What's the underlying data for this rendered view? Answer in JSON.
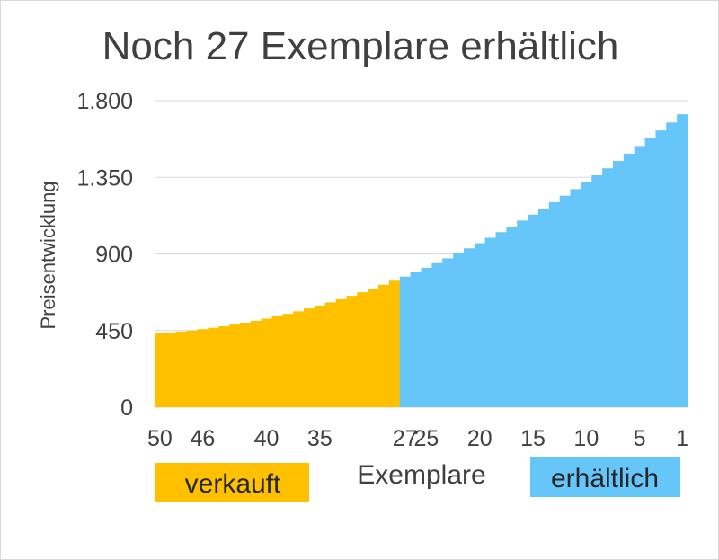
{
  "chart_data": {
    "type": "bar",
    "title": "Noch 27 Exemplare erhältlich",
    "xlabel": "Exemplare",
    "ylabel": "Preisentwicklung",
    "xlim": [
      50,
      1
    ],
    "ylim": [
      0,
      1800
    ],
    "x_ticks": [
      50,
      46,
      40,
      35,
      27,
      25,
      20,
      15,
      10,
      5,
      1
    ],
    "y_tick_values": [
      0,
      450,
      900,
      1350,
      1800
    ],
    "y_tick_labels": [
      "0",
      "450",
      "900",
      "1.350",
      "1.800"
    ],
    "grid": true,
    "legend_position": "bottom",
    "series": [
      {
        "name": "verkauft",
        "color": "#FFC000",
        "x": [
          50,
          49,
          48,
          47,
          46,
          45,
          44,
          43,
          42,
          41,
          40,
          39,
          38,
          37,
          36,
          35,
          34,
          33,
          32,
          31,
          30,
          29,
          28
        ],
        "values": [
          434,
          439,
          444,
          450,
          458,
          466,
          475,
          485,
          496,
          507,
          520,
          534,
          548,
          563,
          580,
          597,
          615,
          634,
          654,
          675,
          696,
          719,
          743
        ]
      },
      {
        "name": "erhältlich",
        "color": "#66C5F9",
        "x": [
          27,
          26,
          25,
          24,
          23,
          22,
          21,
          20,
          19,
          18,
          17,
          16,
          15,
          14,
          13,
          12,
          11,
          10,
          9,
          8,
          7,
          6,
          5,
          4,
          3,
          2,
          1
        ],
        "values": [
          767,
          792,
          819,
          846,
          874,
          903,
          933,
          963,
          995,
          1028,
          1061,
          1096,
          1131,
          1167,
          1204,
          1242,
          1281,
          1321,
          1362,
          1403,
          1446,
          1489,
          1534,
          1579,
          1625,
          1672,
          1720
        ]
      }
    ]
  }
}
